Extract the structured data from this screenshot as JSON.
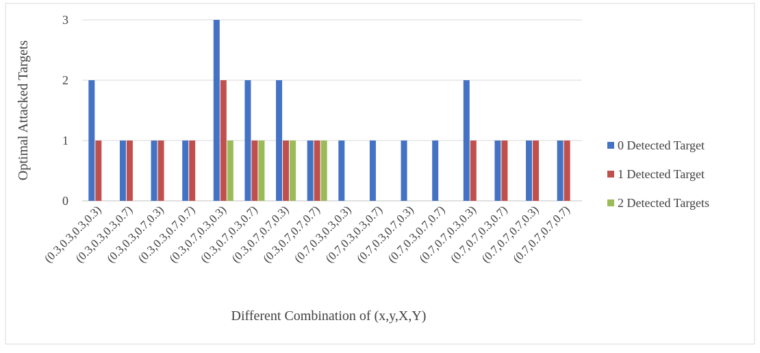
{
  "chart_data": {
    "type": "bar",
    "xlabel": "Different Combination of (x,y,X,Y)",
    "ylabel": "Optimal Attacked Targets",
    "categories": [
      "(0.3,0.3,0.3,0.3)",
      "(0.3,0.3,0.3,0.7)",
      "(0.3,0.3,0.7,0.3)",
      "(0.3,0.3,0.7,0.7)",
      "(0.3,0.7,0.3,0.3)",
      "(0.3,0.7,0.3,0.7)",
      "(0.3,0.7,0.7,0.3)",
      "(0.3,0.7,0.7,0.7)",
      "(0.7,0.3,0.3,0.3)",
      "(0.7,0.3,0.3,0.7)",
      "(0.7,0.3,0.7,0.3)",
      "(0.7,0.3,0.7,0.7)",
      "(0.7,0.7,0.3,0.3)",
      "(0.7,0.7,0.3,0.7)",
      "(0.7,0.7,0.7,0.3)",
      "(0.7,0.7,0.7,0.7)"
    ],
    "series": [
      {
        "name": "0 Detected Target",
        "color": "#4472c4",
        "values": [
          2,
          1,
          1,
          1,
          3,
          2,
          2,
          1,
          1,
          1,
          1,
          1,
          2,
          1,
          1,
          1
        ]
      },
      {
        "name": "1 Detected Target",
        "color": "#c0504d",
        "values": [
          1,
          1,
          1,
          1,
          2,
          1,
          1,
          1,
          0,
          0,
          0,
          0,
          1,
          1,
          1,
          1
        ]
      },
      {
        "name": "2 Detected Targets",
        "color": "#9bbb59",
        "values": [
          0,
          0,
          0,
          0,
          1,
          1,
          1,
          1,
          0,
          0,
          0,
          0,
          0,
          0,
          0,
          0
        ]
      }
    ],
    "ylim": [
      0,
      3
    ],
    "yticks": [
      0,
      1,
      2,
      3
    ],
    "grid": true,
    "legend": "right"
  }
}
